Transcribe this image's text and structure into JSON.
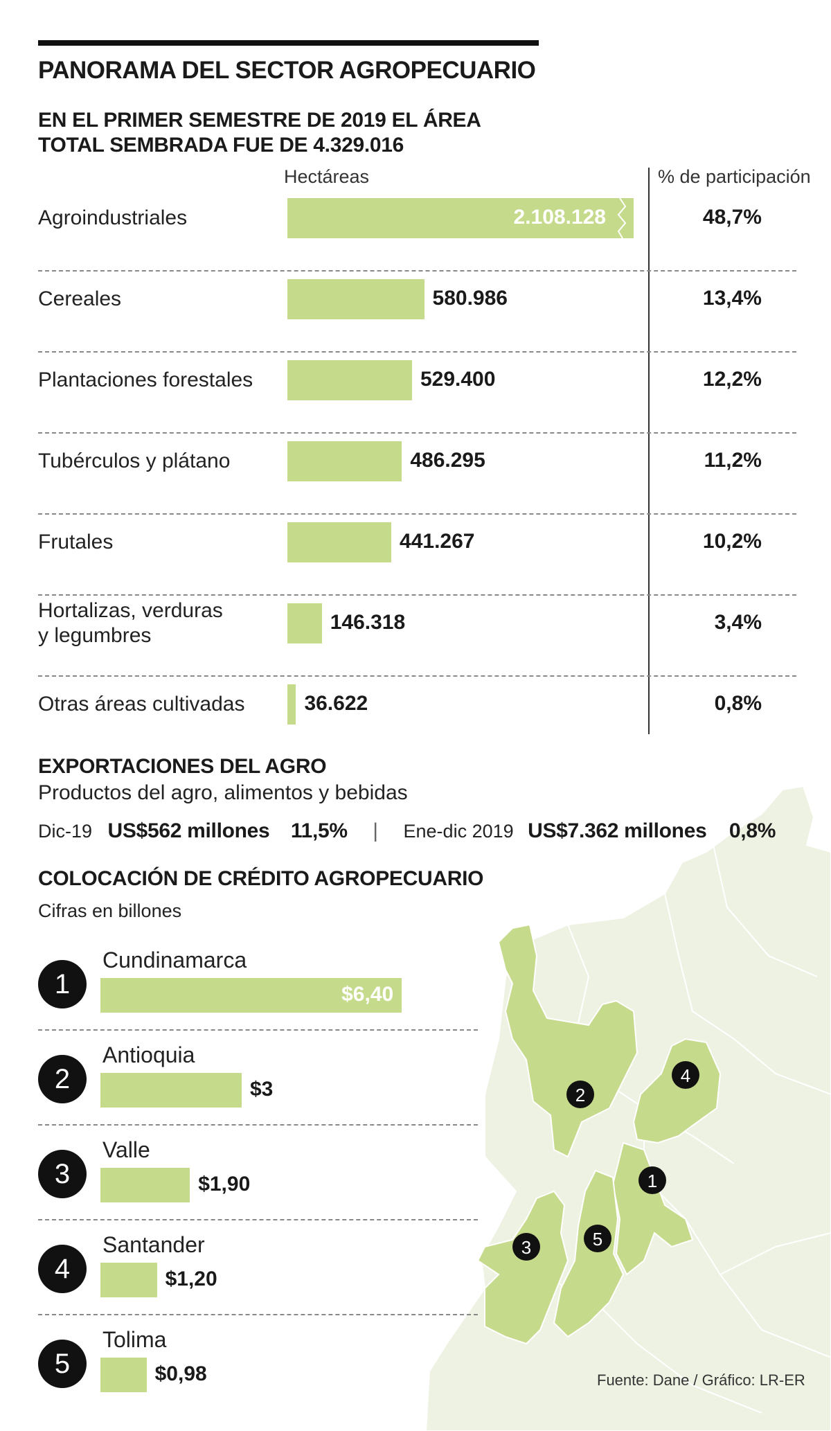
{
  "header": {
    "title": "PANORAMA DEL SECTOR AGROPECUARIO",
    "subtitle_line1": "EN EL PRIMER SEMESTRE DE 2019 EL ÁREA",
    "subtitle_line2": "TOTAL SEMBRADA FUE DE 4.329.016"
  },
  "chart_data": [
    {
      "type": "bar",
      "orientation": "horizontal",
      "column_header_values": "Hectáreas",
      "column_header_share": "% de participación",
      "categories": [
        "Agroindustriales",
        "Cereales",
        "Plantaciones forestales",
        "Tubérculos y plátano",
        "Frutales",
        "Hortalizas, verduras y legumbres",
        "Otras áreas cultivadas"
      ],
      "category_lines": [
        [
          "Agroindustriales"
        ],
        [
          "Cereales"
        ],
        [
          "Plantaciones forestales"
        ],
        [
          "Tubérculos y plátano"
        ],
        [
          "Frutales"
        ],
        [
          "Hortalizas, verduras",
          "y legumbres"
        ],
        [
          "Otras áreas cultivadas"
        ]
      ],
      "values": [
        2108128,
        580986,
        529400,
        486295,
        441267,
        146318,
        36622
      ],
      "value_labels": [
        "2.108.128",
        "580.986",
        "529.400",
        "486.295",
        "441.267",
        "146.318",
        "36.622"
      ],
      "share_labels": [
        "48,7%",
        "13,4%",
        "12,2%",
        "11,2%",
        "10,2%",
        "3,4%",
        "0,8%"
      ],
      "first_bar_truncated": true,
      "bar_color": "#c6da8b"
    },
    {
      "type": "bar",
      "orientation": "horizontal",
      "title": "COLOCACIÓN DE CRÉDITO AGROPECUARIO",
      "subtitle": "Cifras en billones",
      "ranks": [
        "1",
        "2",
        "3",
        "4",
        "5"
      ],
      "categories": [
        "Cundinamarca",
        "Antioquia",
        "Valle",
        "Santander",
        "Tolima"
      ],
      "values": [
        6.4,
        3,
        1.9,
        1.2,
        0.98
      ],
      "value_labels": [
        "$6,40",
        "$3",
        "$1,90",
        "$1,20",
        "$0,98"
      ],
      "bar_color": "#c6da8b"
    }
  ],
  "exports": {
    "title": "EXPORTACIONES DEL AGRO",
    "subtitle": "Productos del agro, alimentos y bebidas",
    "dec_label": "Dic-19",
    "dec_value": "US$562 millones",
    "dec_pct": "11,5%",
    "separator": "|",
    "year_label": "Ene-dic 2019",
    "year_value": "US$7.362 millones",
    "year_pct": "0,8%"
  },
  "map": {
    "markers": [
      "1",
      "2",
      "3",
      "4",
      "5"
    ],
    "land_color": "#eef2e3",
    "highlight_color": "#c6da8b"
  },
  "source": "Fuente: Dane / Gráfico: LR-ER"
}
